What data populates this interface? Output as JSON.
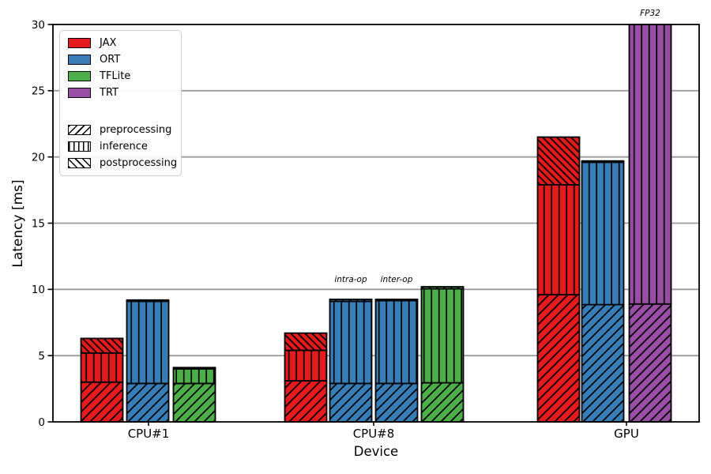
{
  "chart_data": {
    "type": "bar",
    "stacked": true,
    "title": "",
    "xlabel": "Device",
    "ylabel": "Latency [ms]",
    "ylim": [
      0,
      30
    ],
    "yticks": [
      0,
      5,
      10,
      15,
      20,
      25,
      30
    ],
    "grid": "horizontal",
    "grid_color": "#9b9b9b",
    "bar_edge_color": "#000000",
    "legend_position": "upper left",
    "legend": {
      "frameworks": [
        {
          "label": "JAX",
          "color": "#e41a1c"
        },
        {
          "label": "ORT",
          "color": "#377eb8"
        },
        {
          "label": "TFLite",
          "color": "#4daf4a"
        },
        {
          "label": "TRT",
          "color": "#984ea3"
        }
      ],
      "stages": [
        {
          "label": "preprocessing",
          "hatch": "forward-diagonal"
        },
        {
          "label": "inference",
          "hatch": "vertical"
        },
        {
          "label": "postprocessing",
          "hatch": "back-diagonal"
        }
      ]
    },
    "groups": [
      {
        "device": "CPU#1",
        "bars": [
          {
            "framework": "JAX",
            "segments": {
              "preprocessing": 3.0,
              "inference": 2.2,
              "postprocessing": 1.1
            }
          },
          {
            "framework": "ORT",
            "segments": {
              "preprocessing": 2.9,
              "inference": 6.2,
              "postprocessing": 0.1
            }
          },
          {
            "framework": "TFLite",
            "segments": {
              "preprocessing": 2.9,
              "inference": 1.1,
              "postprocessing": 0.1
            }
          }
        ]
      },
      {
        "device": "CPU#8",
        "bars": [
          {
            "framework": "JAX",
            "segments": {
              "preprocessing": 3.1,
              "inference": 2.3,
              "postprocessing": 1.3
            }
          },
          {
            "framework": "ORT",
            "variant": "intra-op",
            "annotation": "intra-op",
            "segments": {
              "preprocessing": 2.9,
              "inference": 6.2,
              "postprocessing": 0.15
            }
          },
          {
            "framework": "ORT",
            "variant": "inter-op",
            "annotation": "inter-op",
            "segments": {
              "preprocessing": 2.9,
              "inference": 6.25,
              "postprocessing": 0.1
            }
          },
          {
            "framework": "TFLite",
            "segments": {
              "preprocessing": 2.95,
              "inference": 7.1,
              "postprocessing": 0.15
            }
          }
        ]
      },
      {
        "device": "GPU",
        "bars": [
          {
            "framework": "JAX",
            "segments": {
              "preprocessing": 9.6,
              "inference": 8.3,
              "postprocessing": 3.6
            }
          },
          {
            "framework": "ORT",
            "segments": {
              "preprocessing": 8.85,
              "inference": 10.75,
              "postprocessing": 0.1
            }
          },
          {
            "framework": "TRT",
            "annotation": "FP32",
            "clipped_at_ylim": true,
            "segments": {
              "preprocessing": 8.9,
              "inference": 25.0,
              "postprocessing": 0
            }
          }
        ]
      }
    ]
  }
}
